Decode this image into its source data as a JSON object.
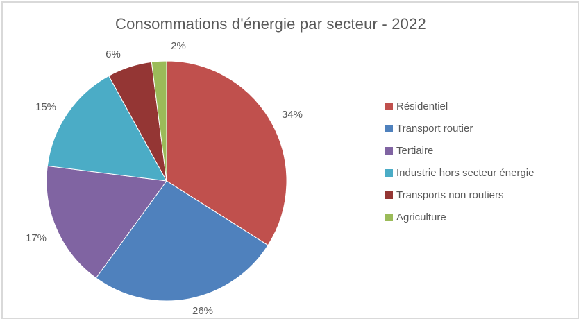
{
  "window": {
    "background": "#ffffff",
    "frame_border_color": "#d9d9d9"
  },
  "chart_data": {
    "type": "pie",
    "title": "Consommations d'énergie par secteur - 2022",
    "title_color": "#595959",
    "categories": [
      "Résidentiel",
      "Transport routier",
      "Tertiaire",
      "Industrie hors secteur énergie",
      "Transports non routiers",
      "Agriculture"
    ],
    "values": [
      34,
      26,
      17,
      15,
      6,
      2
    ],
    "unit": "%",
    "data_labels": [
      "34%",
      "26%",
      "17%",
      "15%",
      "6%",
      "2%"
    ],
    "colors": [
      "#C0504D",
      "#4F81BD",
      "#8064A2",
      "#4BACC6",
      "#943634",
      "#9BBB59"
    ],
    "start_angle_deg": 0,
    "direction": "clockwise",
    "legend_position": "right",
    "data_label_color": "#595959"
  },
  "legend": {
    "items": [
      {
        "label": "Résidentiel",
        "color": "#C0504D"
      },
      {
        "label": "Transport routier",
        "color": "#4F81BD"
      },
      {
        "label": "Tertiaire",
        "color": "#8064A2"
      },
      {
        "label": "Industrie hors secteur énergie",
        "color": "#4BACC6"
      },
      {
        "label": "Transports non routiers",
        "color": "#943634"
      },
      {
        "label": "Agriculture",
        "color": "#9BBB59"
      }
    ]
  }
}
